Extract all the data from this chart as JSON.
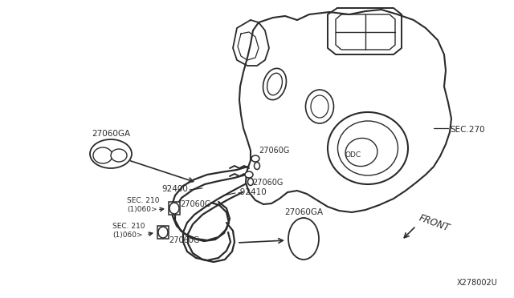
{
  "bg_color": "#ffffff",
  "line_color": "#2a2a2a",
  "part_number": "X278002U",
  "figsize": [
    6.4,
    3.72
  ],
  "dpi": 100,
  "labels": {
    "27060GA_top": "27060GA",
    "27060G_upper": "27060G",
    "27060G_lower": "27060G",
    "SEC270": "SEC.270",
    "SEC210_1": "SEC. 210\n(1)060>",
    "SEC210_2": "SEC. 210\n(1)060>",
    "92400": "92400",
    "92410": "-92410",
    "27060G_bl1": "27060G",
    "27060G_bl2": "27060G",
    "27060GA_bot": "27060GA",
    "FRONT": "FRONT"
  }
}
